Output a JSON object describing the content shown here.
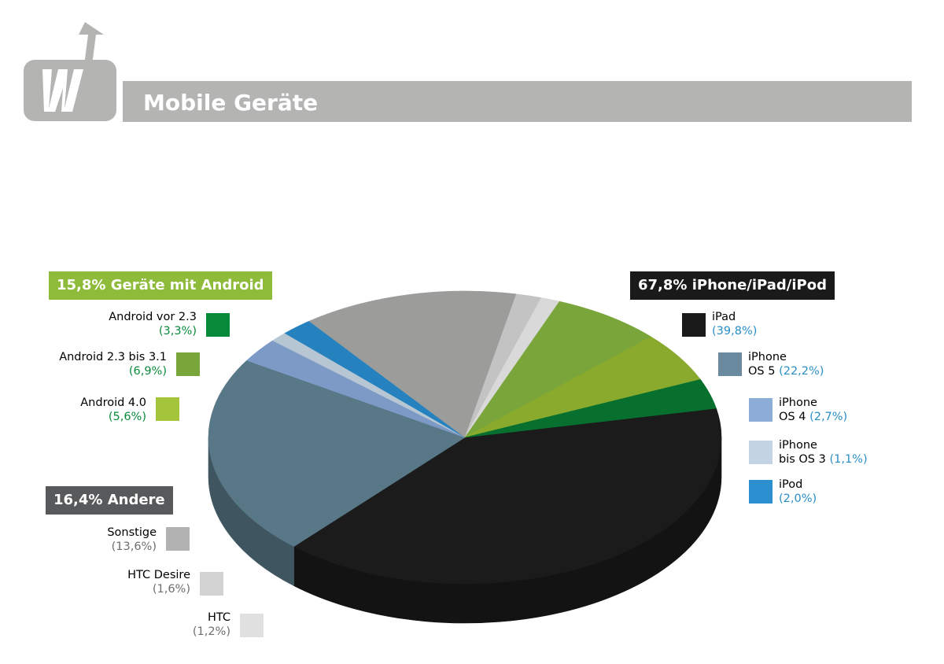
{
  "page_title": "Mobile Geräte",
  "colors": {
    "title_bar": "#b4b4b2",
    "android": "#8fbb3a",
    "apple": "#1a1a1a",
    "other": "#58595b",
    "android_pct": "#0a8a3c",
    "apple_pct": "#2a8ec6",
    "other_pct": "#6d6e70"
  },
  "chart_data": {
    "type": "pie",
    "style": "3d",
    "title": "",
    "groups": [
      {
        "label": "15,8% Geräte mit Android",
        "color": "#8fbb3a",
        "value": 15.8
      },
      {
        "label": "67,8% iPhone/iPad/iPod",
        "color": "#1a1a1a",
        "value": 67.8
      },
      {
        "label": "16,4% Andere",
        "color": "#58595b",
        "value": 16.4
      }
    ],
    "slices": [
      {
        "label": "iPad",
        "pct_label": "(39,8%)",
        "value": 39.8,
        "color": "#1b1b1b",
        "group": "apple"
      },
      {
        "label": "iPhone OS 5",
        "pct_label": "(22,2%)",
        "value": 22.2,
        "color": "#587887",
        "group": "apple"
      },
      {
        "label": "iPhone OS 4",
        "pct_label": "(2,7%)",
        "value": 2.7,
        "color": "#7d9ac6",
        "group": "apple"
      },
      {
        "label": "iPhone bis OS 3",
        "pct_label": "(1,1%)",
        "value": 1.1,
        "color": "#b7c6d3",
        "group": "apple"
      },
      {
        "label": "iPod",
        "pct_label": "(2,0%)",
        "value": 2.0,
        "color": "#2682bf",
        "group": "apple"
      },
      {
        "label": "Sonstige",
        "pct_label": "(13,6%)",
        "value": 13.6,
        "color": "#9c9c9b",
        "group": "other"
      },
      {
        "label": "HTC Desire",
        "pct_label": "(1,6%)",
        "value": 1.6,
        "color": "#c3c3c3",
        "group": "other"
      },
      {
        "label": "HTC",
        "pct_label": "(1,2%)",
        "value": 1.2,
        "color": "#d9d9d9",
        "group": "other"
      },
      {
        "label": "Android 2.3 bis 3.1",
        "pct_label": "(6,9%)",
        "value": 6.9,
        "color": "#79a53a",
        "group": "android"
      },
      {
        "label": "Android 4.0",
        "pct_label": "(5,6%)",
        "value": 5.6,
        "color": "#8aaa2e",
        "group": "android"
      },
      {
        "label": "Android vor 2.3",
        "pct_label": "(3,3%)",
        "value": 3.3,
        "color": "#07702f",
        "group": "android"
      }
    ]
  },
  "legend": {
    "android": [
      {
        "line1": "Android vor 2.3",
        "line2": "",
        "pct": "(3,3%)",
        "swatch": "#068a3a"
      },
      {
        "line1": "Android 2.3 bis 3.1",
        "line2": "",
        "pct": "(6,9%)",
        "swatch": "#79a53a"
      },
      {
        "line1": "Android 4.0",
        "line2": "",
        "pct": "(5,6%)",
        "swatch": "#a3c43b"
      }
    ],
    "apple": [
      {
        "line1": "iPad",
        "line2": "",
        "pct": "(39,8%)",
        "swatch": "#1a1a1a"
      },
      {
        "line1": "iPhone",
        "line2": "OS 5",
        "pct": "(22,2%)",
        "swatch": "#6a8aa0"
      },
      {
        "line1": "iPhone",
        "line2": "OS 4",
        "pct": "(2,7%)",
        "swatch": "#8badd7"
      },
      {
        "line1": "iPhone",
        "line2": "bis OS 3",
        "pct": "(1,1%)",
        "swatch": "#c3d3e3"
      },
      {
        "line1": "iPod",
        "line2": "",
        "pct": "(2,0%)",
        "swatch": "#2b8fd0"
      }
    ],
    "other": [
      {
        "line1": "Sonstige",
        "line2": "",
        "pct": "(13,6%)",
        "swatch": "#b2b2b2"
      },
      {
        "line1": "HTC Desire",
        "line2": "",
        "pct": "(1,6%)",
        "swatch": "#d2d2d2"
      },
      {
        "line1": "HTC",
        "line2": "",
        "pct": "(1,2%)",
        "swatch": "#e0e0e0"
      }
    ]
  }
}
